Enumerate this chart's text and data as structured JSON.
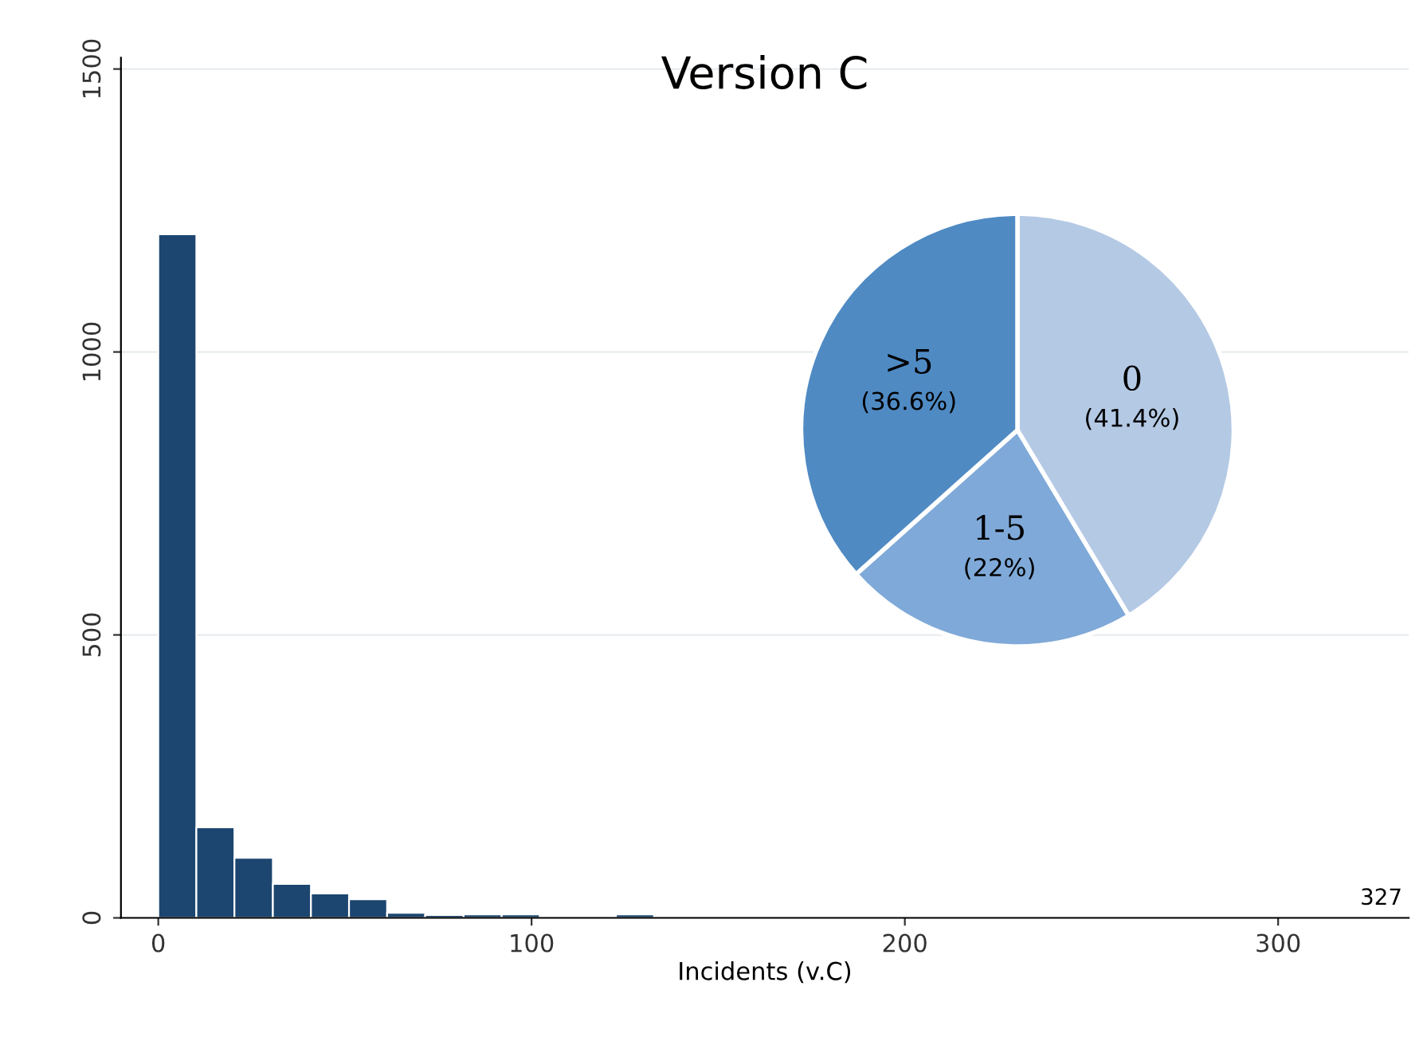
{
  "chart_data": [
    {
      "type": "histogram",
      "title": "Version C",
      "xlabel": "Incidents (v.C)",
      "bins": [
        0,
        10.2,
        20.4,
        30.7,
        40.9,
        51.1,
        61.3,
        71.5,
        81.8,
        92,
        102.2,
        112.4,
        122.6,
        132.8
      ],
      "values": [
        1208,
        160,
        106,
        60,
        43,
        33,
        9,
        5,
        6,
        6,
        0,
        0,
        6
      ],
      "color": "#1c4670",
      "xlim": [
        -10,
        335
      ],
      "xticks": [
        0,
        100,
        200,
        300
      ],
      "ylim": [
        0,
        1520
      ],
      "yticks": [
        0,
        500,
        1000,
        1500
      ],
      "grid": "y",
      "annotations": [
        "327"
      ]
    },
    {
      "type": "pie",
      "categories": [
        "0",
        "1-5",
        ">5"
      ],
      "values": [
        41.4,
        22,
        36.6
      ],
      "colors": [
        "#b4c9e4",
        "#7fa9d8",
        "#4f8ac3"
      ],
      "value_labels": [
        "(41.4%)",
        "(22%)",
        "(36.6%)"
      ]
    }
  ]
}
